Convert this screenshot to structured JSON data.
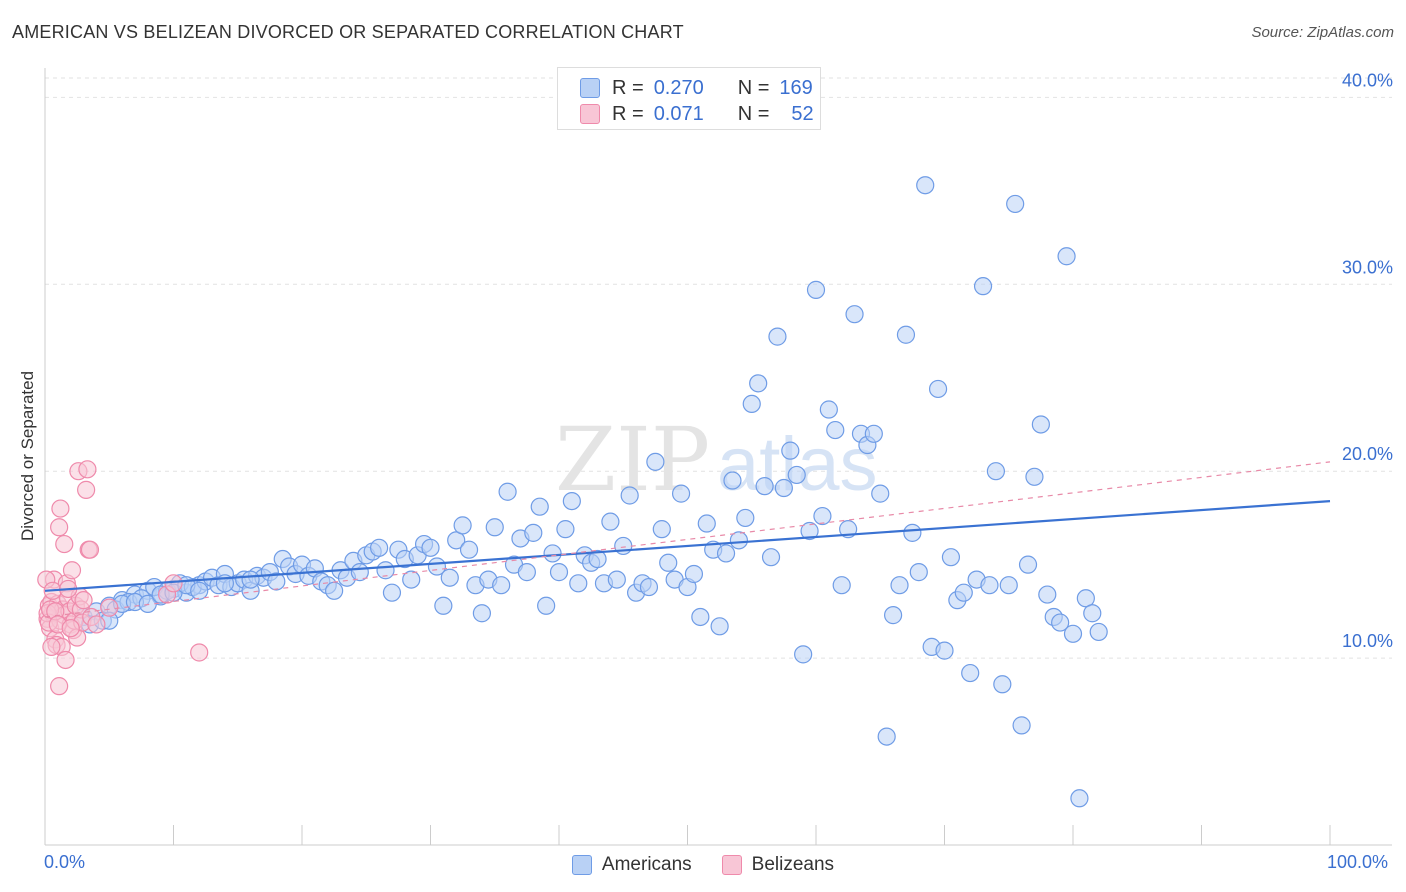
{
  "title": "AMERICAN VS BELIZEAN DIVORCED OR SEPARATED CORRELATION CHART",
  "source": "Source: ZipAtlas.com",
  "watermark": {
    "part1": "ZIP",
    "part2": "atlas"
  },
  "legend_stats": [
    {
      "r_label": "R =",
      "r_value": "0.270",
      "n_label": "N =",
      "n_value": "169",
      "color": "#6f9ce6",
      "fill": "#b9d1f5"
    },
    {
      "r_label": "R =",
      "r_value": "0.071",
      "n_label": "N =",
      "n_value": "52",
      "color": "#ef8aab",
      "fill": "#f8c6d6"
    }
  ],
  "chart_data": {
    "type": "scatter",
    "title": "AMERICAN VS BELIZEAN DIVORCED OR SEPARATED CORRELATION CHART",
    "xlabel": "",
    "ylabel": "Divorced or Separated",
    "xlim": [
      0,
      100
    ],
    "ylim": [
      0,
      42
    ],
    "x_tick_labels": [
      "0.0%",
      "100.0%"
    ],
    "y_ticks": [
      10,
      20,
      30,
      40
    ],
    "y_tick_labels": [
      "10.0%",
      "20.0%",
      "30.0%",
      "40.0%"
    ],
    "grid": "horizontal dashed",
    "legend_position": "top-center and bottom-center",
    "series": [
      {
        "name": "Americans",
        "color": "#6f9ce6",
        "fill": "#b9d1f5",
        "trend": {
          "style": "solid",
          "x": [
            0,
            100
          ],
          "y": [
            13.6,
            18.4
          ]
        },
        "points": [
          [
            3,
            12.2
          ],
          [
            4,
            12.5
          ],
          [
            5,
            12.8
          ],
          [
            6,
            13.1
          ],
          [
            7,
            13.4
          ],
          [
            8,
            13.6
          ],
          [
            9,
            13.3
          ],
          [
            10,
            13.7
          ],
          [
            11,
            13.5
          ],
          [
            12,
            13.9
          ],
          [
            3.5,
            11.8
          ],
          [
            4.5,
            12.0
          ],
          [
            5.5,
            12.6
          ],
          [
            6.5,
            13.0
          ],
          [
            7.5,
            13.2
          ],
          [
            8.5,
            13.8
          ],
          [
            9.5,
            13.6
          ],
          [
            10.5,
            14.0
          ],
          [
            11.5,
            13.8
          ],
          [
            12.5,
            14.1
          ],
          [
            13,
            14.3
          ],
          [
            13.5,
            13.9
          ],
          [
            14,
            14.5
          ],
          [
            14.5,
            13.8
          ],
          [
            15,
            14.0
          ],
          [
            15.5,
            14.2
          ],
          [
            16,
            13.6
          ],
          [
            16.5,
            14.4
          ],
          [
            17,
            14.3
          ],
          [
            17.5,
            14.6
          ],
          [
            18,
            14.1
          ],
          [
            18.5,
            15.3
          ],
          [
            19,
            14.9
          ],
          [
            19.5,
            14.5
          ],
          [
            20,
            15.0
          ],
          [
            20.5,
            14.4
          ],
          [
            21,
            14.8
          ],
          [
            21.5,
            14.1
          ],
          [
            22,
            13.9
          ],
          [
            22.5,
            13.6
          ],
          [
            23,
            14.7
          ],
          [
            23.5,
            14.3
          ],
          [
            24,
            15.2
          ],
          [
            24.5,
            14.6
          ],
          [
            25,
            15.5
          ],
          [
            25.5,
            15.7
          ],
          [
            26,
            15.9
          ],
          [
            26.5,
            14.7
          ],
          [
            27,
            13.5
          ],
          [
            27.5,
            15.8
          ],
          [
            28,
            15.3
          ],
          [
            28.5,
            14.2
          ],
          [
            29,
            15.5
          ],
          [
            29.5,
            16.1
          ],
          [
            30,
            15.9
          ],
          [
            30.5,
            14.9
          ],
          [
            31,
            12.8
          ],
          [
            31.5,
            14.3
          ],
          [
            32,
            16.3
          ],
          [
            32.5,
            17.1
          ],
          [
            33,
            15.8
          ],
          [
            33.5,
            13.9
          ],
          [
            34,
            12.4
          ],
          [
            34.5,
            14.2
          ],
          [
            35,
            17.0
          ],
          [
            35.5,
            13.9
          ],
          [
            36,
            18.9
          ],
          [
            36.5,
            15.0
          ],
          [
            37,
            16.4
          ],
          [
            37.5,
            14.6
          ],
          [
            38,
            16.7
          ],
          [
            38.5,
            18.1
          ],
          [
            39,
            12.8
          ],
          [
            39.5,
            15.6
          ],
          [
            40,
            14.6
          ],
          [
            40.5,
            16.9
          ],
          [
            41,
            18.4
          ],
          [
            41.5,
            14.0
          ],
          [
            42,
            15.5
          ],
          [
            42.5,
            15.1
          ],
          [
            43,
            15.3
          ],
          [
            43.5,
            14.0
          ],
          [
            44,
            17.3
          ],
          [
            44.5,
            14.2
          ],
          [
            45,
            16.0
          ],
          [
            45.5,
            18.7
          ],
          [
            46,
            13.5
          ],
          [
            46.5,
            14.0
          ],
          [
            47,
            13.8
          ],
          [
            47.5,
            20.5
          ],
          [
            48,
            16.9
          ],
          [
            48.5,
            15.1
          ],
          [
            49,
            14.2
          ],
          [
            49.5,
            18.8
          ],
          [
            50,
            13.8
          ],
          [
            50.5,
            14.5
          ],
          [
            51,
            12.2
          ],
          [
            51.5,
            17.2
          ],
          [
            52,
            15.8
          ],
          [
            52.5,
            11.7
          ],
          [
            53,
            15.6
          ],
          [
            53.5,
            19.5
          ],
          [
            54,
            16.3
          ],
          [
            54.5,
            17.5
          ],
          [
            55,
            23.6
          ],
          [
            55.5,
            24.7
          ],
          [
            56,
            19.2
          ],
          [
            56.5,
            15.4
          ],
          [
            57,
            27.2
          ],
          [
            57.5,
            19.1
          ],
          [
            58,
            21.1
          ],
          [
            58.5,
            19.8
          ],
          [
            59,
            10.2
          ],
          [
            59.5,
            16.8
          ],
          [
            60,
            29.7
          ],
          [
            60.5,
            17.6
          ],
          [
            61,
            23.3
          ],
          [
            61.5,
            22.2
          ],
          [
            62,
            13.9
          ],
          [
            62.5,
            16.9
          ],
          [
            63,
            28.4
          ],
          [
            63.5,
            22.0
          ],
          [
            64,
            21.4
          ],
          [
            64.5,
            22.0
          ],
          [
            65,
            18.8
          ],
          [
            65.5,
            5.8
          ],
          [
            66,
            12.3
          ],
          [
            66.5,
            13.9
          ],
          [
            67,
            27.3
          ],
          [
            67.5,
            16.7
          ],
          [
            68,
            14.6
          ],
          [
            68.5,
            35.3
          ],
          [
            69,
            10.6
          ],
          [
            69.5,
            24.4
          ],
          [
            70,
            10.4
          ],
          [
            70.5,
            15.4
          ],
          [
            71,
            13.1
          ],
          [
            71.5,
            13.5
          ],
          [
            72,
            9.2
          ],
          [
            72.5,
            14.2
          ],
          [
            73,
            29.9
          ],
          [
            73.5,
            13.9
          ],
          [
            74,
            20.0
          ],
          [
            74.5,
            8.6
          ],
          [
            75,
            13.9
          ],
          [
            75.5,
            34.3
          ],
          [
            76,
            6.4
          ],
          [
            76.5,
            15.0
          ],
          [
            77,
            19.7
          ],
          [
            77.5,
            22.5
          ],
          [
            78,
            13.4
          ],
          [
            78.5,
            12.2
          ],
          [
            79,
            11.9
          ],
          [
            79.5,
            31.5
          ],
          [
            80,
            11.3
          ],
          [
            80.5,
            2.5
          ],
          [
            81,
            13.2
          ],
          [
            81.5,
            12.4
          ],
          [
            82,
            11.4
          ],
          [
            5,
            12.0
          ],
          [
            6,
            12.9
          ],
          [
            7,
            13.0
          ],
          [
            8,
            12.9
          ],
          [
            9,
            13.4
          ],
          [
            10,
            13.5
          ],
          [
            11,
            13.9
          ],
          [
            12,
            13.6
          ],
          [
            14,
            14.0
          ],
          [
            16,
            14.2
          ]
        ]
      },
      {
        "name": "Belizeans",
        "color": "#ef8aab",
        "fill": "#f8c6d6",
        "trend": {
          "style": "dashed",
          "x": [
            0,
            100
          ],
          "y": [
            12.2,
            20.5
          ]
        },
        "points": [
          [
            0.2,
            12.1
          ],
          [
            0.3,
            12.8
          ],
          [
            0.4,
            11.6
          ],
          [
            0.5,
            13.0
          ],
          [
            0.6,
            12.4
          ],
          [
            0.7,
            14.2
          ],
          [
            0.8,
            11.0
          ],
          [
            0.9,
            10.7
          ],
          [
            1.0,
            12.9
          ],
          [
            1.1,
            8.5
          ],
          [
            1.2,
            12.0
          ],
          [
            1.3,
            10.6
          ],
          [
            1.4,
            12.6
          ],
          [
            1.5,
            12.3
          ],
          [
            1.6,
            9.9
          ],
          [
            1.7,
            14.0
          ],
          [
            1.8,
            13.2
          ],
          [
            1.9,
            12.5
          ],
          [
            2.0,
            11.8
          ],
          [
            2.1,
            14.7
          ],
          [
            2.2,
            11.5
          ],
          [
            2.3,
            12.0
          ],
          [
            2.4,
            12.8
          ],
          [
            2.5,
            11.1
          ],
          [
            2.6,
            20.0
          ],
          [
            2.7,
            13.3
          ],
          [
            2.8,
            12.6
          ],
          [
            2.9,
            11.9
          ],
          [
            3.0,
            13.1
          ],
          [
            3.2,
            19.0
          ],
          [
            3.3,
            20.1
          ],
          [
            3.4,
            15.8
          ],
          [
            3.5,
            15.8
          ],
          [
            3.6,
            12.2
          ],
          [
            0.1,
            14.2
          ],
          [
            0.2,
            12.4
          ],
          [
            0.3,
            11.9
          ],
          [
            0.4,
            12.6
          ],
          [
            0.5,
            10.6
          ],
          [
            0.6,
            13.6
          ],
          [
            0.8,
            12.5
          ],
          [
            1.0,
            11.8
          ],
          [
            1.1,
            17.0
          ],
          [
            1.2,
            18.0
          ],
          [
            1.5,
            16.1
          ],
          [
            1.8,
            13.7
          ],
          [
            2.0,
            11.6
          ],
          [
            4.0,
            11.8
          ],
          [
            5.0,
            12.7
          ],
          [
            9.5,
            13.4
          ],
          [
            10.0,
            14.0
          ],
          [
            12.0,
            10.3
          ]
        ]
      }
    ]
  },
  "legend_bottom": [
    "Americans",
    "Belizeans"
  ]
}
